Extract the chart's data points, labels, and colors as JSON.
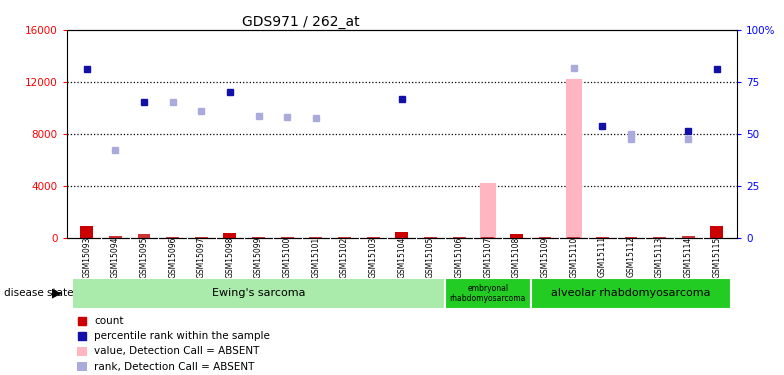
{
  "title": "GDS971 / 262_at",
  "samples": [
    "GSM15093",
    "GSM15094",
    "GSM15095",
    "GSM15096",
    "GSM15097",
    "GSM15098",
    "GSM15099",
    "GSM15100",
    "GSM15101",
    "GSM15102",
    "GSM15103",
    "GSM15104",
    "GSM15105",
    "GSM15106",
    "GSM15107",
    "GSM15108",
    "GSM15109",
    "GSM15110",
    "GSM15111",
    "GSM15112",
    "GSM15113",
    "GSM15114",
    "GSM15115"
  ],
  "count_values": [
    900,
    150,
    300,
    100,
    120,
    400,
    100,
    100,
    100,
    100,
    100,
    500,
    100,
    100,
    100,
    350,
    100,
    100,
    100,
    100,
    100,
    200,
    950
  ],
  "count_is_present": [
    true,
    false,
    false,
    false,
    false,
    true,
    false,
    false,
    false,
    false,
    false,
    true,
    false,
    false,
    false,
    true,
    false,
    false,
    false,
    false,
    false,
    false,
    true
  ],
  "rank_present": [
    13000,
    null,
    10500,
    null,
    null,
    11200,
    null,
    null,
    null,
    null,
    null,
    10700,
    null,
    null,
    null,
    null,
    null,
    null,
    8600,
    null,
    null,
    8200,
    13000
  ],
  "rank_absent": [
    null,
    6800,
    null,
    10500,
    9800,
    null,
    9400,
    9300,
    9200,
    null,
    null,
    null,
    null,
    null,
    null,
    null,
    null,
    null,
    null,
    7600,
    null,
    null,
    null
  ],
  "value_absent": [
    null,
    null,
    null,
    null,
    null,
    null,
    null,
    null,
    null,
    null,
    null,
    null,
    null,
    null,
    4200,
    null,
    null,
    12200,
    null,
    null,
    null,
    null,
    null
  ],
  "value_present": [
    null,
    null,
    null,
    null,
    null,
    null,
    null,
    null,
    null,
    null,
    null,
    null,
    null,
    null,
    null,
    null,
    null,
    null,
    null,
    null,
    null,
    null,
    null
  ],
  "rank_absent2": [
    null,
    null,
    null,
    null,
    null,
    null,
    null,
    null,
    null,
    null,
    null,
    null,
    null,
    null,
    null,
    null,
    null,
    13100,
    null,
    8000,
    null,
    7600,
    null
  ],
  "ylim_left": [
    0,
    16000
  ],
  "ylim_right": [
    0,
    100
  ],
  "yticks_left": [
    0,
    4000,
    8000,
    12000,
    16000
  ],
  "ytick_labels_left": [
    "0",
    "4000",
    "8000",
    "12000",
    "16000"
  ],
  "ytick_labels_right": [
    "0",
    "25",
    "50",
    "75",
    "100%"
  ]
}
